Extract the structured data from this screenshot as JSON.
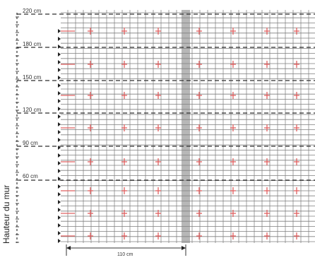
{
  "diagram": {
    "axis_title": "Hauteur du mur",
    "height_labels": [
      "220 cm",
      "180 cm",
      "150 cm",
      "120 cm",
      "90 cm",
      "60 cm"
    ],
    "width_label": "110 cm",
    "colors": {
      "grid": "#7f7f7f",
      "band": "#d6d6d6",
      "fixing": "#e06060",
      "dashed": "#2f2f2f"
    }
  }
}
